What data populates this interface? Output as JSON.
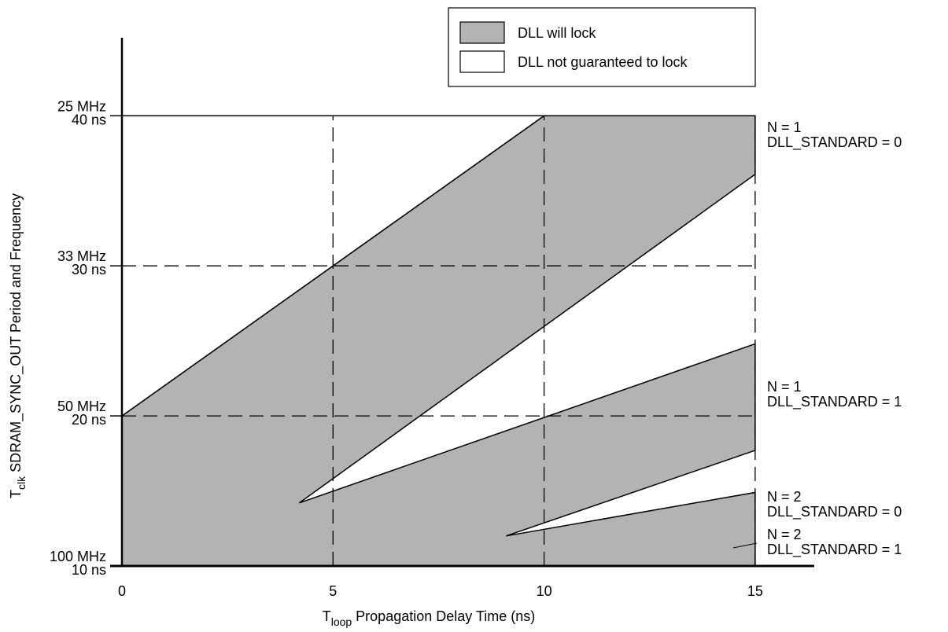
{
  "chart_data": {
    "type": "region",
    "x_label": {
      "symbol": "T",
      "subscript": "loop",
      "text": "Propagation Delay Time (ns)"
    },
    "y_label": {
      "symbol": "T",
      "subscript": "clk",
      "text": "SDRAM_SYNC_OUT Period and Frequency"
    },
    "xlim": [
      0,
      16.4
    ],
    "ylim": [
      10,
      45.2
    ],
    "xticks": [
      0,
      5,
      10,
      15
    ],
    "yticks": [
      {
        "value": 10,
        "label": "10 ns"
      },
      {
        "value": 20,
        "label": "20 ns"
      },
      {
        "value": 30,
        "label": "30 ns"
      },
      {
        "value": 40,
        "label": "40 ns"
      }
    ],
    "y_freq_labels": [
      "100 MHz",
      "50 MHz",
      "33 MHz",
      "25 MHz"
    ],
    "grid": true,
    "series": [
      {
        "name": "DLL will lock",
        "color": "#b3b3b3",
        "polygons": [
          {
            "x": [
              0,
              0,
              10,
              15,
              15,
              4.2,
              15,
              15,
              9.1,
              15,
              15
            ],
            "y": [
              10,
              20,
              40,
              40,
              36.1,
              14.2,
              24.8,
              17.7,
              12.0,
              14.9,
              10
            ]
          }
        ]
      },
      {
        "name": "DLL not guaranteed to lock",
        "color": "#ffffff",
        "polygons": [
          {
            "x": [
              0,
              10,
              0
            ],
            "y": [
              20,
              40,
              40
            ]
          }
        ]
      }
    ],
    "annotations": [
      [
        "N = 1",
        "DLL_STANDARD = 0"
      ],
      [
        "N = 1",
        "DLL_STANDARD = 1"
      ],
      [
        "N = 2",
        "DLL_STANDARD = 0"
      ],
      [
        "N = 2",
        "DLL_STANDARD = 1"
      ]
    ]
  }
}
